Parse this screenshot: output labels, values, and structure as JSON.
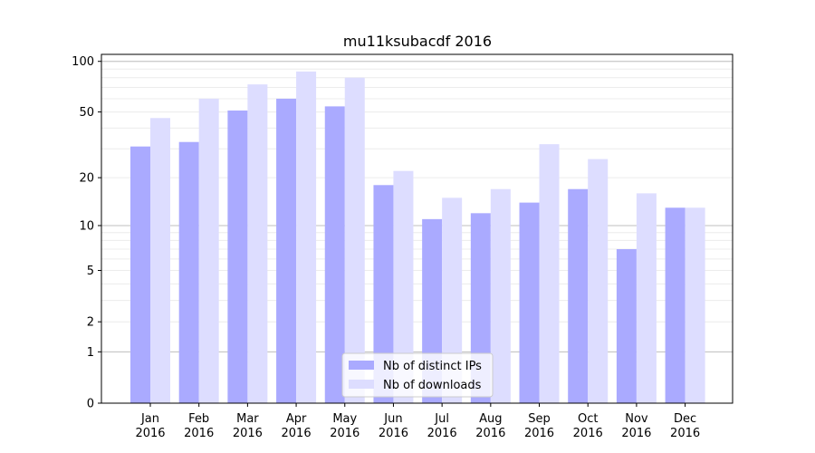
{
  "chart_data": {
    "type": "bar",
    "title": "mu11ksubacdf 2016",
    "xlabel": "",
    "ylabel": "",
    "y_scale": "symlog",
    "y_ticks": [
      0,
      1,
      2,
      5,
      10,
      20,
      50,
      100
    ],
    "grid": true,
    "legend_position": "bottom-center",
    "categories": [
      [
        "Jan",
        "2016"
      ],
      [
        "Feb",
        "2016"
      ],
      [
        "Mar",
        "2016"
      ],
      [
        "Apr",
        "2016"
      ],
      [
        "May",
        "2016"
      ],
      [
        "Jun",
        "2016"
      ],
      [
        "Jul",
        "2016"
      ],
      [
        "Aug",
        "2016"
      ],
      [
        "Sep",
        "2016"
      ],
      [
        "Oct",
        "2016"
      ],
      [
        "Nov",
        "2016"
      ],
      [
        "Dec",
        "2016"
      ]
    ],
    "series": [
      {
        "name": "Nb of distinct IPs",
        "color": "#aaaaff",
        "values": [
          31,
          33,
          51,
          60,
          54,
          18,
          11,
          12,
          14,
          17,
          7,
          13
        ]
      },
      {
        "name": "Nb of downloads",
        "color": "#ddddff",
        "values": [
          46,
          60,
          73,
          87,
          80,
          22,
          15,
          17,
          32,
          26,
          16,
          13
        ]
      }
    ]
  }
}
